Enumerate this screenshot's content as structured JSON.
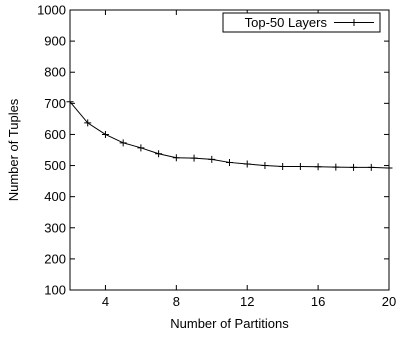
{
  "chart_data": {
    "type": "line",
    "title": "",
    "xlabel": "Number of Partitions",
    "ylabel": "Number of Tuples",
    "xlim": [
      2,
      20
    ],
    "ylim": [
      100,
      1000
    ],
    "x_ticks": [
      4,
      8,
      12,
      16,
      20
    ],
    "y_ticks": [
      100,
      200,
      300,
      400,
      500,
      600,
      700,
      800,
      900,
      1000
    ],
    "x_tick_labels": [
      "4",
      "8",
      "12",
      "16",
      "20"
    ],
    "y_tick_labels": [
      "100",
      "200",
      "300",
      "400",
      "500",
      "600",
      "700",
      "800",
      "900",
      "1000"
    ],
    "grid": false,
    "legend_position": "top-right",
    "series": [
      {
        "name": "Top-50 Layers",
        "marker": "plus",
        "color": "#000000",
        "x": [
          2,
          3,
          4,
          5,
          6,
          7,
          8,
          9,
          10,
          11,
          12,
          13,
          14,
          15,
          16,
          17,
          18,
          19,
          20
        ],
        "y": [
          705,
          637,
          600,
          573,
          557,
          538,
          525,
          524,
          520,
          510,
          505,
          500,
          497,
          497,
          496,
          495,
          494,
          494,
          492
        ]
      }
    ]
  }
}
